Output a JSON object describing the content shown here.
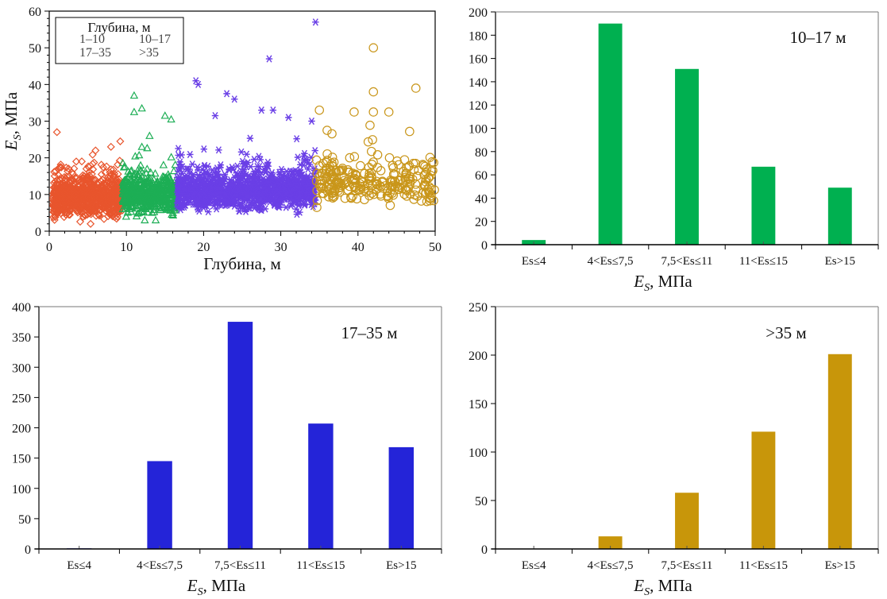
{
  "chart_data": [
    {
      "type": "scatter",
      "title": "",
      "xlabel": "Глубина, м",
      "ylabel_main": "E",
      "ylabel_sub": "S",
      "ylabel_rest": ", МПа",
      "xlim": [
        0,
        50
      ],
      "ylim": [
        0,
        60
      ],
      "xticks": [
        "0",
        "10",
        "20",
        "30",
        "40",
        "50"
      ],
      "yticks": [
        "0",
        "10",
        "20",
        "30",
        "40",
        "50",
        "60"
      ],
      "grid": false,
      "legend": {
        "title": "Глубина, м",
        "placement": "top-left",
        "entries": [
          {
            "label": "1–10",
            "marker": "diamond",
            "color": "#E8552D"
          },
          {
            "label": "10–17",
            "marker": "triangle",
            "color": "#1DAE55"
          },
          {
            "label": "17–35",
            "marker": "asterisk",
            "color": "#6A3FE6"
          },
          {
            "label": ">35",
            "marker": "circle",
            "color": "#C9961A"
          }
        ]
      },
      "series": [
        {
          "name": "1–10",
          "x_range": [
            0.5,
            9.5
          ],
          "y_core": [
            2,
            16
          ],
          "outliers": [
            [
              1,
              27
            ],
            [
              6,
              22
            ],
            [
              8,
              23
            ],
            [
              9.2,
              24.5
            ],
            [
              1.2,
              17
            ],
            [
              3.5,
              19
            ]
          ]
        },
        {
          "name": "10–17",
          "x_range": [
            9.5,
            16.5
          ],
          "y_core": [
            3,
            17
          ],
          "outliers": [
            [
              11,
              37
            ],
            [
              11,
              32.5
            ],
            [
              12,
              33.5
            ],
            [
              15,
              31.5
            ],
            [
              15.8,
              30.5
            ],
            [
              13,
              26
            ],
            [
              12,
              23
            ]
          ]
        },
        {
          "name": "17–35",
          "x_range": [
            16.5,
            34.5
          ],
          "y_core": [
            4,
            18
          ],
          "outliers": [
            [
              19,
              41
            ],
            [
              19.3,
              40
            ],
            [
              23,
              37.5
            ],
            [
              24,
              36
            ],
            [
              28.5,
              47
            ],
            [
              34.5,
              57
            ],
            [
              27.5,
              33
            ],
            [
              29,
              33
            ],
            [
              31,
              31
            ],
            [
              34,
              30
            ],
            [
              21.5,
              31.5
            ]
          ]
        },
        {
          "name": ">35",
          "x_range": [
            34.5,
            50
          ],
          "y_core": [
            5,
            22
          ],
          "outliers": [
            [
              42,
              50
            ],
            [
              42,
              38
            ],
            [
              47.5,
              39
            ],
            [
              42,
              32.5
            ],
            [
              35,
              33
            ],
            [
              44,
              32.5
            ],
            [
              39.5,
              32.5
            ],
            [
              36,
              27.5
            ]
          ]
        }
      ]
    },
    {
      "type": "bar",
      "annotation": "10–17 м",
      "categories": [
        "Es≤4",
        "4<Es≤7,5",
        "7,5<Es≤11",
        "11<Es≤15",
        "Es>15"
      ],
      "values": [
        4,
        190,
        151,
        67,
        49
      ],
      "color": "#00B050",
      "ylim": [
        0,
        200
      ],
      "yticks": [
        "0",
        "20",
        "40",
        "60",
        "80",
        "100",
        "120",
        "140",
        "160",
        "180",
        "200"
      ],
      "xlabel_main": "E",
      "xlabel_sub": "S",
      "xlabel_rest": ", МПа",
      "grid": false
    },
    {
      "type": "bar",
      "annotation": "17–35 м",
      "categories": [
        "Es≤4",
        "4<Es≤7,5",
        "7,5<Es≤11",
        "11<Es≤15",
        "Es>15"
      ],
      "values": [
        1,
        145,
        375,
        207,
        168
      ],
      "color": "#2424D8",
      "ylim": [
        0,
        400
      ],
      "yticks": [
        "0",
        "50",
        "100",
        "150",
        "200",
        "250",
        "300",
        "350",
        "400"
      ],
      "xlabel_main": "E",
      "xlabel_sub": "S",
      "xlabel_rest": ", МПа",
      "grid": false
    },
    {
      "type": "bar",
      "annotation": ">35 м",
      "categories": [
        "Es≤4",
        "4<Es≤7,5",
        "7,5<Es≤11",
        "11<Es≤15",
        "Es>15"
      ],
      "values": [
        0,
        13,
        58,
        121,
        201
      ],
      "color": "#C8960A",
      "ylim": [
        0,
        250
      ],
      "yticks": [
        "0",
        "50",
        "100",
        "150",
        "200",
        "250"
      ],
      "xlabel_main": "E",
      "xlabel_sub": "S",
      "xlabel_rest": ", МПа",
      "grid": false
    }
  ]
}
